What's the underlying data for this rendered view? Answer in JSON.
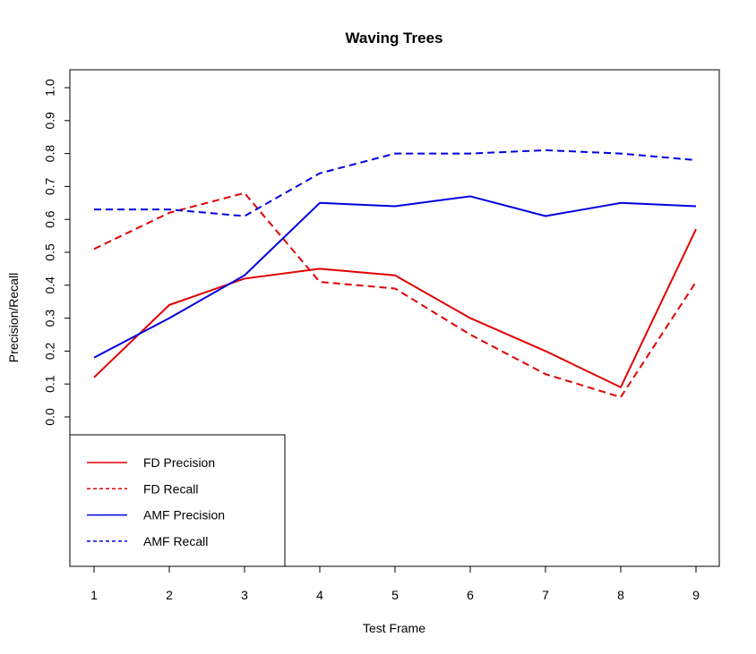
{
  "chart_data": {
    "type": "line",
    "title": "Waving Trees",
    "xlabel": "Test Frame",
    "ylabel": "Precision/Recall",
    "x": [
      1,
      2,
      3,
      4,
      5,
      6,
      7,
      8,
      9
    ],
    "xticks": [
      "1",
      "2",
      "3",
      "4",
      "5",
      "6",
      "7",
      "8",
      "9"
    ],
    "yticks": [
      "0.0",
      "0.1",
      "0.2",
      "0.3",
      "0.4",
      "0.5",
      "0.6",
      "0.7",
      "0.8",
      "0.9",
      "1.0"
    ],
    "ylim": [
      -0.45,
      1.1
    ],
    "xlim": [
      0.7,
      9.3
    ],
    "grid": false,
    "legend_position": "bottom-left",
    "series": [
      {
        "name": "FD Precision",
        "color": "#e00000",
        "dash": "solid",
        "values": [
          0.12,
          0.34,
          0.42,
          0.45,
          0.43,
          0.3,
          0.2,
          0.09,
          0.57
        ]
      },
      {
        "name": "FD Recall",
        "color": "#e00000",
        "dash": "dashed",
        "values": [
          0.51,
          0.62,
          0.68,
          0.41,
          0.39,
          0.25,
          0.13,
          0.06,
          0.41
        ]
      },
      {
        "name": "AMF Precision",
        "color": "#0000e0",
        "dash": "solid",
        "values": [
          0.18,
          0.3,
          0.43,
          0.65,
          0.64,
          0.67,
          0.61,
          0.65,
          0.64
        ]
      },
      {
        "name": "AMF Recall",
        "color": "#0000e0",
        "dash": "dashed",
        "values": [
          0.63,
          0.63,
          0.61,
          0.74,
          0.8,
          0.8,
          0.81,
          0.8,
          0.78
        ]
      }
    ]
  }
}
